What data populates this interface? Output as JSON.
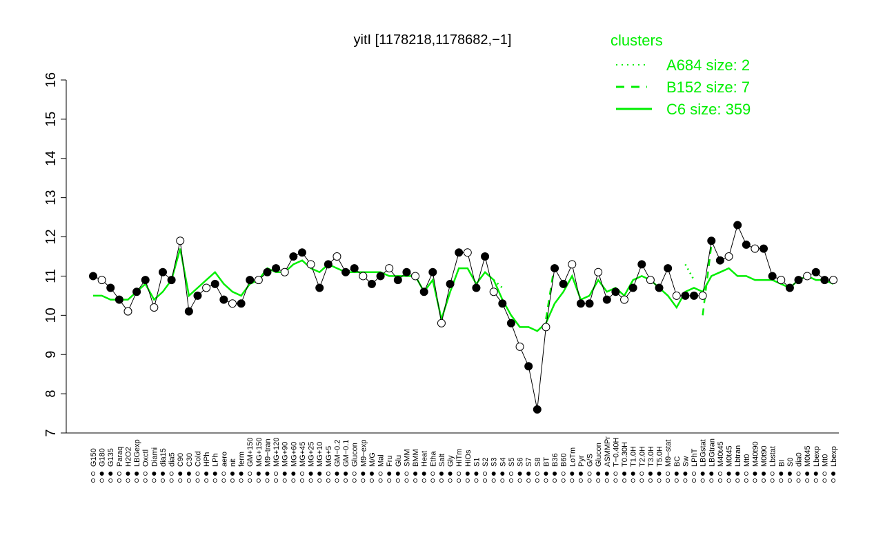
{
  "chart_data": {
    "type": "line",
    "title": "yitI [1178218,1178682,−1]",
    "xlabel": "",
    "ylabel": "",
    "ylim": [
      7,
      16
    ],
    "yticks": [
      "7",
      "8",
      "9",
      "10",
      "11",
      "12",
      "13",
      "14",
      "15",
      "16"
    ],
    "legend": {
      "title": "clusters",
      "position": "top-right",
      "color": "#00ee00",
      "entries": [
        {
          "label": "A684 size: 2",
          "style": "dotted"
        },
        {
          "label": "B152 size: 7",
          "style": "dashed"
        },
        {
          "label": "C6 size: 359",
          "style": "solid"
        }
      ]
    },
    "x_tick_labels": [
      "G150",
      "G180",
      "G135",
      "Paraq",
      "H2O2",
      "LBGexp",
      "Oxctl",
      "Diami",
      "dia15",
      "dia5",
      "C90",
      "C30",
      "Cold",
      "HPh",
      "LPh",
      "aero",
      "nit",
      "ferm",
      "GM+150",
      "MG+150",
      "M9−tran",
      "MG+120",
      "MG+90",
      "MG+60",
      "MG+45",
      "MG+25",
      "MG+10",
      "MG+5",
      "GM−0.2",
      "GM−0.1",
      "Glucon",
      "M9−exp",
      "M/G",
      "Mal",
      "Fru",
      "Glu",
      "SMM",
      "BMM",
      "Heat",
      "Etha",
      "Salt",
      "Gly",
      "HiTm",
      "HiOs",
      "S1",
      "S2",
      "S3",
      "S4",
      "S5",
      "S6",
      "S7",
      "S8",
      "BT",
      "B36",
      "B60",
      "LoTm",
      "Pyr",
      "G/S",
      "Glucon",
      "ASMMPr",
      "T−0.40H",
      "T0.30H",
      "T1.0H",
      "T2.0H",
      "T3.0H",
      "T5.0H",
      "M9−stat",
      "BC",
      "Sw",
      "LPhT",
      "LBGstat",
      "LBGtran",
      "M40t45",
      "M0t45",
      "Lbtran",
      "Mt0",
      "M40t90",
      "M0t90",
      "Lbstat",
      "BI",
      "S0",
      "dia0",
      "M0t45",
      "Lbexp",
      "Mt0",
      "Lbexp"
    ],
    "series": [
      {
        "style": "points",
        "points_y": [
          11.0,
          10.9,
          10.7,
          10.4,
          10.1,
          10.6,
          10.9,
          10.2,
          11.1,
          10.9,
          11.9,
          10.1,
          10.5,
          10.7,
          10.8,
          10.4,
          10.3,
          10.3,
          10.9,
          10.9,
          11.1,
          11.2,
          11.1,
          11.5,
          11.6,
          11.3,
          10.7,
          11.3,
          11.5,
          11.1,
          11.2,
          11.0,
          10.8,
          11.0,
          11.2,
          10.9,
          11.1,
          11.0,
          10.6,
          11.1,
          9.8,
          10.8,
          11.6,
          11.6,
          10.7,
          11.5,
          10.6,
          10.3,
          9.8,
          9.2,
          8.7,
          7.6,
          9.7,
          11.2,
          10.8,
          11.3,
          10.3,
          10.3,
          11.1,
          10.4,
          10.6,
          10.4,
          10.7,
          11.3,
          10.9,
          10.7,
          11.2,
          10.5,
          10.5,
          10.5,
          10.5,
          11.9,
          11.4,
          11.5,
          12.3,
          11.8,
          11.7,
          11.7,
          11.0,
          10.9,
          10.7,
          10.9,
          11.0,
          11.1,
          10.9,
          10.9
        ]
      },
      {
        "name": "C6 size: 359",
        "style": "solid",
        "values_y": [
          10.5,
          10.5,
          10.4,
          10.4,
          10.4,
          10.6,
          10.8,
          10.4,
          10.6,
          10.9,
          11.7,
          10.5,
          10.7,
          10.9,
          11.1,
          10.8,
          10.6,
          10.5,
          10.8,
          10.9,
          11.2,
          11.1,
          11.1,
          11.3,
          11.4,
          11.2,
          11.1,
          11.3,
          11.2,
          11.1,
          11.1,
          11.1,
          11.1,
          11.1,
          11.0,
          11.0,
          11.0,
          11.0,
          10.6,
          10.9,
          9.9,
          10.6,
          11.2,
          11.2,
          10.8,
          11.1,
          10.9,
          10.4,
          10.0,
          9.7,
          9.7,
          9.6,
          9.8,
          10.3,
          10.6,
          11.0,
          10.4,
          10.5,
          10.9,
          10.6,
          10.7,
          10.5,
          10.9,
          11.0,
          10.9,
          10.7,
          10.5,
          10.2,
          10.6,
          10.7,
          10.6,
          11.0,
          11.1,
          11.2,
          11.0,
          11.0,
          10.9,
          10.9,
          10.9,
          10.8,
          10.7,
          10.9,
          11.0,
          10.9,
          10.9,
          10.8
        ]
      },
      {
        "name": "B152 size: 7",
        "style": "dashed",
        "values_y": [
          null,
          null,
          null,
          null,
          null,
          null,
          null,
          null,
          null,
          null,
          11.8,
          null,
          null,
          null,
          null,
          null,
          null,
          null,
          null,
          null,
          null,
          null,
          null,
          null,
          null,
          null,
          null,
          null,
          null,
          null,
          null,
          null,
          null,
          null,
          null,
          null,
          null,
          null,
          null,
          null,
          null,
          null,
          null,
          null,
          null,
          null,
          null,
          null,
          null,
          null,
          null,
          null,
          9.9,
          11.3,
          null,
          null,
          null,
          null,
          null,
          null,
          null,
          null,
          null,
          null,
          null,
          null,
          null,
          null,
          null,
          null,
          10.0,
          11.8,
          null,
          null,
          null,
          null,
          null,
          null,
          null,
          null,
          null,
          null,
          null,
          null,
          null,
          null
        ]
      },
      {
        "name": "A684 size: 2",
        "style": "dotted",
        "values_y": [
          null,
          null,
          null,
          null,
          null,
          null,
          null,
          null,
          null,
          null,
          null,
          null,
          null,
          null,
          null,
          null,
          null,
          null,
          null,
          null,
          null,
          null,
          null,
          null,
          null,
          null,
          null,
          null,
          null,
          null,
          null,
          null,
          null,
          null,
          null,
          null,
          null,
          null,
          null,
          null,
          null,
          null,
          null,
          null,
          null,
          null,
          10.9,
          10.7,
          null,
          null,
          null,
          null,
          null,
          null,
          null,
          null,
          null,
          null,
          null,
          null,
          null,
          null,
          null,
          null,
          null,
          null,
          null,
          null,
          11.3,
          10.9,
          null,
          null,
          null,
          null,
          null,
          null,
          null,
          null,
          null,
          null,
          null,
          null,
          null,
          null,
          null,
          null
        ]
      }
    ]
  }
}
